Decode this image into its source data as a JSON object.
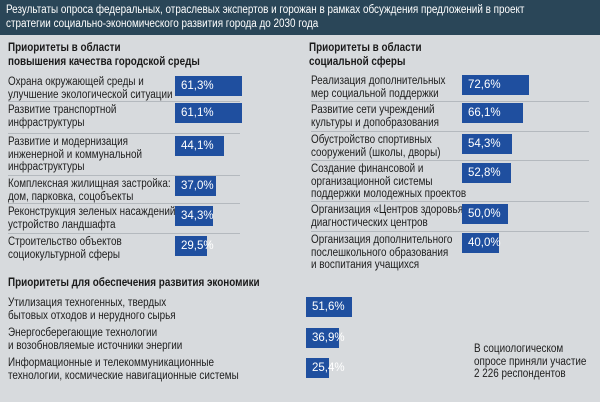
{
  "header": {
    "line1": "Результаты опроса федеральных, отраслевых экспертов и горожан в рамках обсуждения предложений в проект",
    "line2": "стратегии социально-экономического развития города до 2030 года"
  },
  "colors": {
    "header_bg": "#2a4658",
    "panel_bg": "#d7dadd",
    "bar": "#1f4f9f",
    "bar_text": "#ffffff"
  },
  "note": [
    "В социологическом",
    "опросе приняли участие",
    "2 226 респондентов"
  ],
  "chart_data": [
    {
      "type": "bar",
      "orientation": "horizontal",
      "title": [
        "Приоритеты в области",
        "повышения качества городской среды"
      ],
      "categories": [
        [
          "Охрана окружающей среды и",
          "улучшение экологической ситуации"
        ],
        [
          "Развитие транспортной",
          "инфраструктуры"
        ],
        [
          "Развитие и модернизация",
          "инженерной и коммунальной",
          "инфраструктуры"
        ],
        [
          "Комплексная жилищная застройка:",
          "дом, парковка, соцобъекты"
        ],
        [
          "Реконструкция зеленых насаждений,",
          "устройство ландшафта"
        ],
        [
          "Строительство объектов",
          "социокультурной сферы"
        ]
      ],
      "values": [
        61.3,
        61.1,
        44.1,
        37.0,
        34.3,
        29.5
      ],
      "value_labels": [
        "61,3%",
        "61,1%",
        "44,1%",
        "37,0%",
        "34,3%",
        "29,5%"
      ],
      "value_unit": "%"
    },
    {
      "type": "bar",
      "orientation": "horizontal",
      "title": [
        "Приоритеты в области",
        "социальной сферы"
      ],
      "categories": [
        [
          "Реализация дополнительных",
          "мер социальной поддержки"
        ],
        [
          "Развитие сети учреждений",
          "культуры и допобразования"
        ],
        [
          "Обустройство спортивных",
          "сооружений (школы, дворы)"
        ],
        [
          "Создание финансовой и",
          "организационной системы",
          "поддержки молодежных проектов"
        ],
        [
          "Организация «Центров здоровья» —",
          "диагностических центров"
        ],
        [
          "Организация дополнительного",
          "послешкольного образования",
          "и воспитания учащихся"
        ]
      ],
      "values": [
        72.6,
        66.1,
        54.3,
        52.8,
        50.0,
        40.0
      ],
      "value_labels": [
        "72,6%",
        "66,1%",
        "54,3%",
        "52,8%",
        "50,0%",
        "40,0%"
      ],
      "value_unit": "%"
    },
    {
      "type": "bar",
      "orientation": "horizontal",
      "title": [
        "Приоритеты для обеспечения развития экономики"
      ],
      "categories": [
        [
          "Утилизация техногенных, твердых",
          "бытовых отходов и нерудного сырья"
        ],
        [
          "Энергосберегающие технологии",
          "и возобновляемые источники энергии"
        ],
        [
          "Информационные и телекоммуникационные",
          "технологии, космические навигационные системы"
        ]
      ],
      "values": [
        51.6,
        36.9,
        25.4
      ],
      "value_labels": [
        "51,6%",
        "36,9%",
        "25,4%"
      ],
      "value_unit": "%"
    }
  ]
}
